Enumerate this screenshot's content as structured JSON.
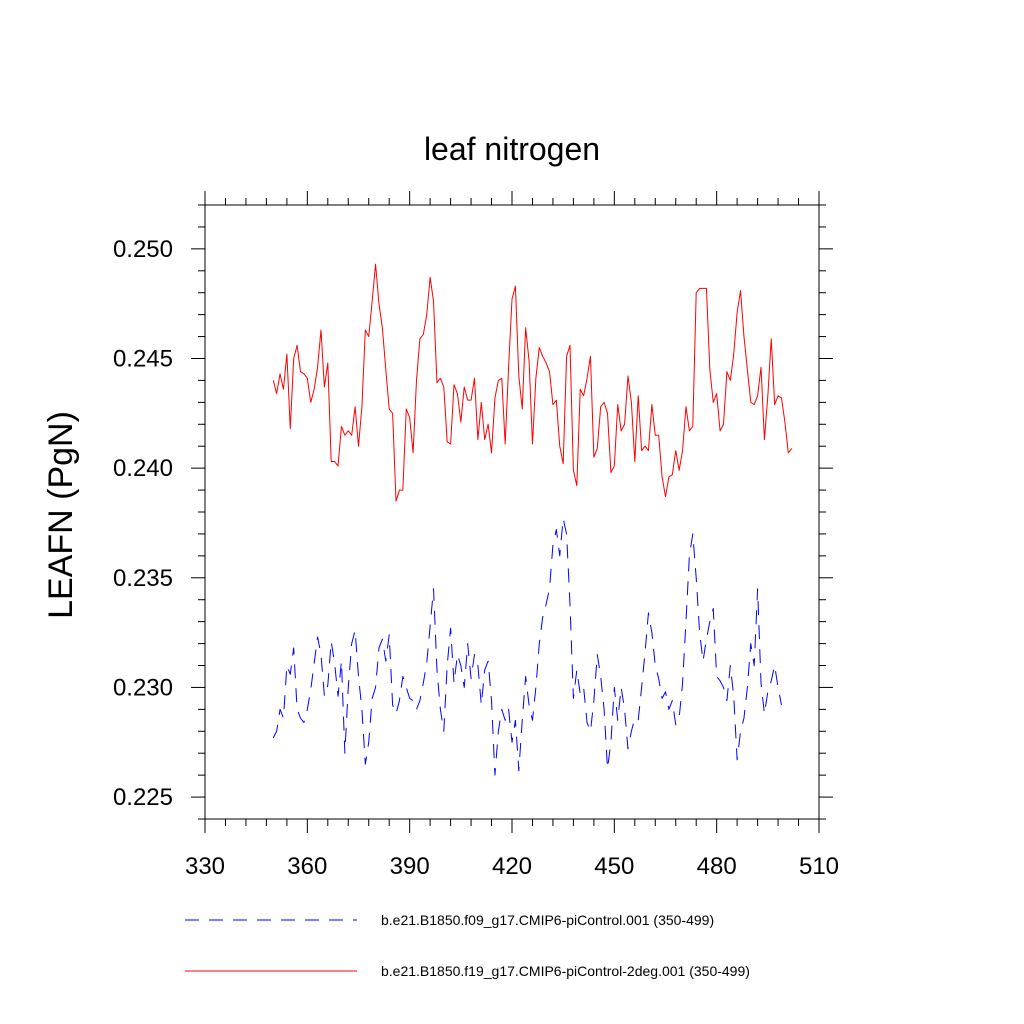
{
  "chart_data": {
    "type": "line",
    "title": "leaf nitrogen",
    "xlabel": "",
    "ylabel": "LEAFN  (PgN)",
    "xlim": [
      330,
      510
    ],
    "ylim": [
      0.224,
      0.252
    ],
    "x_ticks": [
      330,
      360,
      390,
      420,
      450,
      480,
      510
    ],
    "x_tick_labels": [
      "330",
      "360",
      "390",
      "420",
      "450",
      "480",
      "510"
    ],
    "y_ticks": [
      0.225,
      0.23,
      0.235,
      0.24,
      0.245,
      0.25
    ],
    "y_tick_labels": [
      "0.225",
      "0.230",
      "0.235",
      "0.240",
      "0.245",
      "0.250"
    ],
    "legend_position": "bottom",
    "series": [
      {
        "name": "b.e21.B1850.f09_g17.CMIP6-piControl.001 (350-499)",
        "color": "#0000ff",
        "dash": "dashed",
        "x_start": 350,
        "x_step": 1,
        "values": [
          0.2277,
          0.228,
          0.229,
          0.2286,
          0.231,
          0.2306,
          0.2318,
          0.229,
          0.2286,
          0.2284,
          0.229,
          0.2299,
          0.2311,
          0.2323,
          0.2315,
          0.2296,
          0.2301,
          0.2321,
          0.2311,
          0.2296,
          0.2312,
          0.227,
          0.23,
          0.232,
          0.2326,
          0.2305,
          0.229,
          0.2265,
          0.2275,
          0.2295,
          0.23,
          0.2318,
          0.2322,
          0.2312,
          0.2324,
          0.2292,
          0.2288,
          0.2294,
          0.2305,
          0.23,
          0.2295,
          0.2294,
          0.229,
          0.2294,
          0.2302,
          0.2311,
          0.2328,
          0.2345,
          0.2308,
          0.229,
          0.228,
          0.231,
          0.2327,
          0.2302,
          0.2315,
          0.231,
          0.23,
          0.232,
          0.2304,
          0.2315,
          0.231,
          0.2292,
          0.2308,
          0.2312,
          0.2294,
          0.226,
          0.228,
          0.229,
          0.2285,
          0.229,
          0.2275,
          0.2285,
          0.2262,
          0.2285,
          0.2305,
          0.2292,
          0.2285,
          0.23,
          0.232,
          0.2332,
          0.2338,
          0.2345,
          0.2365,
          0.2372,
          0.236,
          0.2377,
          0.237,
          0.2338,
          0.2295,
          0.2308,
          0.2297,
          0.23,
          0.2284,
          0.228,
          0.2294,
          0.2315,
          0.2305,
          0.229,
          0.2263,
          0.2275,
          0.23,
          0.2285,
          0.23,
          0.229,
          0.2272,
          0.228,
          0.2286,
          0.2285,
          0.23,
          0.2316,
          0.2334,
          0.2325,
          0.231,
          0.2304,
          0.2295,
          0.2298,
          0.229,
          0.2294,
          0.2283,
          0.2286,
          0.2302,
          0.233,
          0.236,
          0.237,
          0.235,
          0.2325,
          0.2312,
          0.2322,
          0.233,
          0.2336,
          0.2305,
          0.2303,
          0.23,
          0.2294,
          0.231,
          0.2296,
          0.2267,
          0.228,
          0.2286,
          0.23,
          0.232,
          0.231,
          0.2345,
          0.2302,
          0.2288,
          0.2298,
          0.2303,
          0.231,
          0.23,
          0.2292
        ]
      },
      {
        "name": "b.e21.B1850.f19_g17.CMIP6-piControl-2deg.001 (350-499)",
        "color": "#ff0000",
        "dash": "solid",
        "x_start": 350,
        "x_step": 1,
        "values": [
          0.244,
          0.2434,
          0.2443,
          0.2436,
          0.2452,
          0.2418,
          0.245,
          0.2456,
          0.2444,
          0.2443,
          0.2441,
          0.243,
          0.2436,
          0.2446,
          0.2463,
          0.2437,
          0.2448,
          0.2403,
          0.2403,
          0.2401,
          0.2419,
          0.2415,
          0.2417,
          0.2415,
          0.2428,
          0.241,
          0.2428,
          0.2463,
          0.246,
          0.2476,
          0.2493,
          0.2475,
          0.2464,
          0.2445,
          0.2427,
          0.2425,
          0.2385,
          0.239,
          0.239,
          0.2427,
          0.2423,
          0.2407,
          0.244,
          0.2459,
          0.2461,
          0.247,
          0.2487,
          0.2476,
          0.2439,
          0.2441,
          0.2437,
          0.2412,
          0.2411,
          0.2438,
          0.2434,
          0.2421,
          0.2437,
          0.2431,
          0.2431,
          0.2441,
          0.2413,
          0.243,
          0.2413,
          0.242,
          0.2407,
          0.2432,
          0.244,
          0.2441,
          0.2411,
          0.2446,
          0.2477,
          0.2483,
          0.2442,
          0.2427,
          0.2464,
          0.2449,
          0.2411,
          0.2441,
          0.2455,
          0.2451,
          0.2448,
          0.2444,
          0.2429,
          0.2431,
          0.241,
          0.2402,
          0.2451,
          0.2456,
          0.2399,
          0.2392,
          0.2436,
          0.2433,
          0.2441,
          0.2451,
          0.2405,
          0.2409,
          0.2428,
          0.243,
          0.2425,
          0.2398,
          0.2401,
          0.2429,
          0.2417,
          0.242,
          0.2442,
          0.243,
          0.2403,
          0.2433,
          0.2408,
          0.241,
          0.2408,
          0.2429,
          0.2415,
          0.2415,
          0.2396,
          0.2387,
          0.2396,
          0.2397,
          0.2408,
          0.2399,
          0.2408,
          0.2428,
          0.2417,
          0.2419,
          0.248,
          0.2482,
          0.2482,
          0.2482,
          0.2445,
          0.243,
          0.2434,
          0.2417,
          0.242,
          0.2444,
          0.244,
          0.2452,
          0.2471,
          0.2481,
          0.246,
          0.2445,
          0.243,
          0.2429,
          0.2433,
          0.2446,
          0.2413,
          0.2433,
          0.2459,
          0.2429,
          0.2433,
          0.2432,
          0.2421,
          0.2407,
          0.2409
        ]
      }
    ]
  }
}
